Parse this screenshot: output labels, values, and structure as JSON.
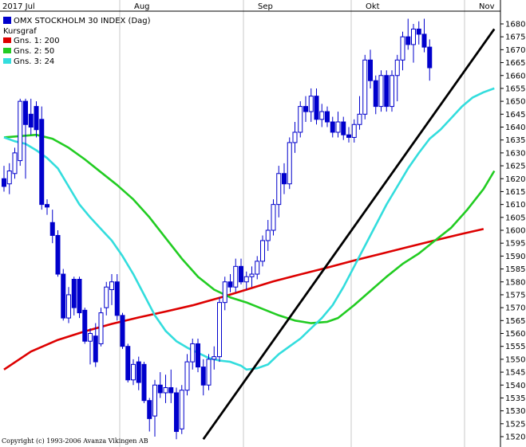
{
  "chart_data": {
    "type": "candlestick",
    "title": "OMX STOCKHOLM 30 INDEX (Dag)",
    "legend_header": "Kursgraf",
    "month_labels": [
      {
        "label": "2017 Jul",
        "day": 0
      },
      {
        "label": "Aug",
        "day": 22
      },
      {
        "label": "Sep",
        "day": 45
      },
      {
        "label": "Okt",
        "day": 65
      },
      {
        "label": "Nov",
        "day": 86
      }
    ],
    "y_ticks": [
      1520,
      1525,
      1530,
      1535,
      1540,
      1545,
      1550,
      1555,
      1560,
      1565,
      1570,
      1575,
      1580,
      1585,
      1590,
      1595,
      1600,
      1605,
      1610,
      1615,
      1620,
      1625,
      1630,
      1635,
      1640,
      1645,
      1650,
      1655,
      1660,
      1665,
      1670,
      1675,
      1680
    ],
    "ylim": [
      1517,
      1683
    ],
    "copyright": "Copyright (c) 1993-2006 Avanza Vikingen AB",
    "colors": {
      "candle_up": "#ffffff",
      "candle_down": "#0000cc",
      "candle_edge": "#0000cc",
      "price_series": "#0000cc",
      "ma200": "#dd0000",
      "ma50": "#22cc22",
      "ma24": "#33dddd",
      "trendline": "#000000",
      "grid": "#c8c8c8"
    },
    "series": [
      {
        "name": "OMX STOCKHOLM 30 INDEX (Dag)",
        "kind": "price",
        "color": "#0000cc"
      },
      {
        "name": "Gns. 1: 200",
        "kind": "ma",
        "color": "#dd0000",
        "values": [
          [
            0,
            1546
          ],
          [
            5,
            1553
          ],
          [
            10,
            1557.5
          ],
          [
            15,
            1560.8
          ],
          [
            20,
            1563.7
          ],
          [
            25,
            1566.2
          ],
          [
            30,
            1568.5
          ],
          [
            35,
            1570.9
          ],
          [
            40,
            1573.8
          ],
          [
            45,
            1577
          ],
          [
            50,
            1580.2
          ],
          [
            55,
            1582.9
          ],
          [
            60,
            1585.5
          ],
          [
            65,
            1588.3
          ],
          [
            70,
            1590.9
          ],
          [
            75,
            1593.5
          ],
          [
            80,
            1596.1
          ],
          [
            85,
            1598.6
          ],
          [
            89,
            1600.5
          ]
        ]
      },
      {
        "name": "Gns. 2: 50",
        "kind": "ma",
        "color": "#22cc22",
        "values": [
          [
            0,
            1636
          ],
          [
            3,
            1636.5
          ],
          [
            6,
            1637
          ],
          [
            9,
            1635.5
          ],
          [
            12,
            1632
          ],
          [
            15,
            1627.5
          ],
          [
            18,
            1622.5
          ],
          [
            21,
            1617.5
          ],
          [
            24,
            1612
          ],
          [
            27,
            1605
          ],
          [
            30,
            1597
          ],
          [
            33,
            1589
          ],
          [
            36,
            1582
          ],
          [
            39,
            1577
          ],
          [
            42,
            1574
          ],
          [
            45,
            1572
          ],
          [
            48,
            1569.5
          ],
          [
            51,
            1567
          ],
          [
            54,
            1565
          ],
          [
            57,
            1564
          ],
          [
            60,
            1564.5
          ],
          [
            62,
            1566
          ],
          [
            65,
            1571
          ],
          [
            68,
            1576.5
          ],
          [
            71,
            1582
          ],
          [
            74,
            1587
          ],
          [
            77,
            1591
          ],
          [
            80,
            1596
          ],
          [
            83,
            1601
          ],
          [
            86,
            1608
          ],
          [
            89,
            1616
          ],
          [
            91,
            1623
          ]
        ]
      },
      {
        "name": "Gns. 3: 24",
        "kind": "ma",
        "color": "#33dddd",
        "values": [
          [
            0,
            1636
          ],
          [
            2,
            1634.5
          ],
          [
            4,
            1633.5
          ],
          [
            6,
            1631
          ],
          [
            8,
            1628
          ],
          [
            10,
            1624
          ],
          [
            12,
            1617
          ],
          [
            14,
            1610
          ],
          [
            16,
            1605
          ],
          [
            18,
            1600.5
          ],
          [
            20,
            1596
          ],
          [
            22,
            1590
          ],
          [
            24,
            1583
          ],
          [
            26,
            1575
          ],
          [
            28,
            1567
          ],
          [
            30,
            1561
          ],
          [
            32,
            1557
          ],
          [
            34,
            1554.5
          ],
          [
            36,
            1552.5
          ],
          [
            38,
            1550.5
          ],
          [
            40,
            1549.5
          ],
          [
            42,
            1549
          ],
          [
            44,
            1547.5
          ],
          [
            45,
            1546
          ],
          [
            47,
            1546.5
          ],
          [
            49,
            1548
          ],
          [
            51,
            1552
          ],
          [
            53,
            1555
          ],
          [
            55,
            1558
          ],
          [
            57,
            1562
          ],
          [
            59,
            1566
          ],
          [
            61,
            1571
          ],
          [
            63,
            1578
          ],
          [
            65,
            1586
          ],
          [
            67,
            1594
          ],
          [
            69,
            1602
          ],
          [
            71,
            1610
          ],
          [
            73,
            1617
          ],
          [
            75,
            1624
          ],
          [
            77,
            1630
          ],
          [
            79,
            1635.5
          ],
          [
            81,
            1639
          ],
          [
            83,
            1643.5
          ],
          [
            85,
            1648
          ],
          [
            87,
            1651.5
          ],
          [
            89,
            1653.5
          ],
          [
            91,
            1655
          ]
        ]
      }
    ],
    "trendline": {
      "from": [
        37,
        1519
      ],
      "to": [
        91,
        1678
      ]
    },
    "candles": [
      {
        "o": 1620,
        "h": 1625,
        "l": 1615,
        "c": 1617
      },
      {
        "o": 1618,
        "h": 1626,
        "l": 1614,
        "c": 1623
      },
      {
        "o": 1622,
        "h": 1632,
        "l": 1620,
        "c": 1630
      },
      {
        "o": 1627,
        "h": 1651,
        "l": 1625,
        "c": 1650
      },
      {
        "o": 1650,
        "h": 1651,
        "l": 1620,
        "c": 1641
      },
      {
        "o": 1645,
        "h": 1651,
        "l": 1637,
        "c": 1640
      },
      {
        "o": 1648,
        "h": 1650,
        "l": 1636,
        "c": 1639
      },
      {
        "o": 1643,
        "h": 1648,
        "l": 1608,
        "c": 1610
      },
      {
        "o": 1610,
        "h": 1612,
        "l": 1606,
        "c": 1609
      },
      {
        "o": 1603,
        "h": 1608,
        "l": 1595,
        "c": 1598
      },
      {
        "o": 1598,
        "h": 1600,
        "l": 1582,
        "c": 1583
      },
      {
        "o": 1583,
        "h": 1585,
        "l": 1565,
        "c": 1566
      },
      {
        "o": 1566,
        "h": 1578,
        "l": 1564,
        "c": 1575
      },
      {
        "o": 1581,
        "h": 1582,
        "l": 1567,
        "c": 1570
      },
      {
        "o": 1581,
        "h": 1582,
        "l": 1566,
        "c": 1568
      },
      {
        "o": 1569,
        "h": 1570,
        "l": 1556,
        "c": 1557
      },
      {
        "o": 1557,
        "h": 1562,
        "l": 1548,
        "c": 1560
      },
      {
        "o": 1559,
        "h": 1564,
        "l": 1547,
        "c": 1549
      },
      {
        "o": 1556,
        "h": 1570,
        "l": 1555,
        "c": 1568
      },
      {
        "o": 1570,
        "h": 1580,
        "l": 1567,
        "c": 1578
      },
      {
        "o": 1577,
        "h": 1583,
        "l": 1571,
        "c": 1580
      },
      {
        "o": 1580,
        "h": 1583,
        "l": 1565,
        "c": 1567
      },
      {
        "o": 1567,
        "h": 1568,
        "l": 1554,
        "c": 1555
      },
      {
        "o": 1555,
        "h": 1556,
        "l": 1541,
        "c": 1542
      },
      {
        "o": 1542,
        "h": 1550,
        "l": 1540,
        "c": 1548
      },
      {
        "o": 1549,
        "h": 1551,
        "l": 1538,
        "c": 1541
      },
      {
        "o": 1548,
        "h": 1549,
        "l": 1533,
        "c": 1534
      },
      {
        "o": 1534,
        "h": 1535,
        "l": 1522,
        "c": 1527
      },
      {
        "o": 1528,
        "h": 1542,
        "l": 1520,
        "c": 1540
      },
      {
        "o": 1540,
        "h": 1545,
        "l": 1535,
        "c": 1537
      },
      {
        "o": 1537,
        "h": 1544,
        "l": 1533,
        "c": 1539
      },
      {
        "o": 1539,
        "h": 1546,
        "l": 1533,
        "c": 1537
      },
      {
        "o": 1537,
        "h": 1539,
        "l": 1519,
        "c": 1522
      },
      {
        "o": 1523,
        "h": 1540,
        "l": 1521,
        "c": 1538
      },
      {
        "o": 1538,
        "h": 1552,
        "l": 1536,
        "c": 1549
      },
      {
        "o": 1549,
        "h": 1558,
        "l": 1546,
        "c": 1556
      },
      {
        "o": 1556,
        "h": 1558,
        "l": 1545,
        "c": 1547
      },
      {
        "o": 1547,
        "h": 1550,
        "l": 1536,
        "c": 1540
      },
      {
        "o": 1540,
        "h": 1552,
        "l": 1538,
        "c": 1550
      },
      {
        "o": 1550,
        "h": 1555,
        "l": 1546,
        "c": 1551
      },
      {
        "o": 1551,
        "h": 1574,
        "l": 1549,
        "c": 1572
      },
      {
        "o": 1572,
        "h": 1582,
        "l": 1569,
        "c": 1580
      },
      {
        "o": 1580,
        "h": 1583,
        "l": 1576,
        "c": 1578
      },
      {
        "o": 1578,
        "h": 1589,
        "l": 1576,
        "c": 1586
      },
      {
        "o": 1586,
        "h": 1589,
        "l": 1579,
        "c": 1580
      },
      {
        "o": 1580,
        "h": 1584,
        "l": 1577,
        "c": 1582
      },
      {
        "o": 1582,
        "h": 1586,
        "l": 1578,
        "c": 1583
      },
      {
        "o": 1583,
        "h": 1590,
        "l": 1581,
        "c": 1588
      },
      {
        "o": 1588,
        "h": 1598,
        "l": 1586,
        "c": 1596
      },
      {
        "o": 1596,
        "h": 1604,
        "l": 1592,
        "c": 1600
      },
      {
        "o": 1600,
        "h": 1612,
        "l": 1598,
        "c": 1610
      },
      {
        "o": 1610,
        "h": 1625,
        "l": 1605,
        "c": 1622
      },
      {
        "o": 1622,
        "h": 1626,
        "l": 1614,
        "c": 1618
      },
      {
        "o": 1618,
        "h": 1636,
        "l": 1616,
        "c": 1634
      },
      {
        "o": 1634,
        "h": 1642,
        "l": 1630,
        "c": 1638
      },
      {
        "o": 1638,
        "h": 1650,
        "l": 1636,
        "c": 1648
      },
      {
        "o": 1648,
        "h": 1652,
        "l": 1642,
        "c": 1646
      },
      {
        "o": 1646,
        "h": 1655,
        "l": 1642,
        "c": 1652
      },
      {
        "o": 1652,
        "h": 1655,
        "l": 1641,
        "c": 1643
      },
      {
        "o": 1643,
        "h": 1649,
        "l": 1640,
        "c": 1646
      },
      {
        "o": 1646,
        "h": 1648,
        "l": 1640,
        "c": 1642
      },
      {
        "o": 1642,
        "h": 1644,
        "l": 1636,
        "c": 1638
      },
      {
        "o": 1638,
        "h": 1646,
        "l": 1636,
        "c": 1642
      },
      {
        "o": 1642,
        "h": 1644,
        "l": 1635,
        "c": 1637
      },
      {
        "o": 1637,
        "h": 1640,
        "l": 1634,
        "c": 1636
      },
      {
        "o": 1636,
        "h": 1643,
        "l": 1634,
        "c": 1641
      },
      {
        "o": 1641,
        "h": 1652,
        "l": 1639,
        "c": 1645
      },
      {
        "o": 1645,
        "h": 1668,
        "l": 1643,
        "c": 1666
      },
      {
        "o": 1666,
        "h": 1670,
        "l": 1655,
        "c": 1658
      },
      {
        "o": 1658,
        "h": 1660,
        "l": 1645,
        "c": 1648
      },
      {
        "o": 1648,
        "h": 1662,
        "l": 1646,
        "c": 1660
      },
      {
        "o": 1660,
        "h": 1662,
        "l": 1646,
        "c": 1648
      },
      {
        "o": 1648,
        "h": 1662,
        "l": 1646,
        "c": 1660
      },
      {
        "o": 1660,
        "h": 1668,
        "l": 1650,
        "c": 1666
      },
      {
        "o": 1666,
        "h": 1677,
        "l": 1662,
        "c": 1675
      },
      {
        "o": 1675,
        "h": 1682,
        "l": 1670,
        "c": 1672
      },
      {
        "o": 1672,
        "h": 1680,
        "l": 1665,
        "c": 1678
      },
      {
        "o": 1678,
        "h": 1681,
        "l": 1672,
        "c": 1676
      },
      {
        "o": 1676,
        "h": 1682,
        "l": 1669,
        "c": 1671
      },
      {
        "o": 1671,
        "h": 1674,
        "l": 1658,
        "c": 1663
      }
    ]
  }
}
